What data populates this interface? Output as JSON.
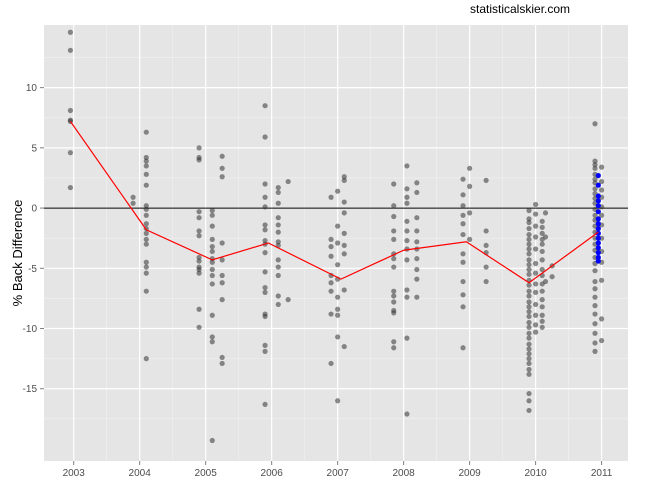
{
  "site_label": "statisticalskier.com",
  "chart_data": {
    "type": "scatter",
    "title": "",
    "xlabel": "",
    "ylabel": "% Back Difference",
    "xlim": [
      2002.55,
      2011.4
    ],
    "ylim": [
      -21,
      15.2
    ],
    "x_ticks": [
      2003,
      2004,
      2005,
      2006,
      2007,
      2008,
      2009,
      2010,
      2011
    ],
    "x_tick_labels": [
      "2003",
      "2004",
      "2005",
      "2006",
      "2007",
      "2008",
      "2009",
      "2010",
      "2011"
    ],
    "y_ticks": [
      -15,
      -10,
      -5,
      0,
      5,
      10
    ],
    "y_tick_labels": [
      "-15",
      "-10",
      "-5",
      "0",
      "5",
      "10"
    ],
    "grid": true,
    "reference_line_y": 0,
    "colors": {
      "panel_bg": "#e5e5e5",
      "grid_major": "#ffffff",
      "points": "#333333",
      "highlight_points": "#0000ff",
      "mean_line": "#ff0000",
      "zero_line": "#000000"
    },
    "series": [
      {
        "type": "points",
        "groups": [
          {
            "x": 2002.95,
            "y": [
              14.6,
              13.1,
              8.1,
              7.3,
              7.2,
              4.6,
              1.7
            ]
          },
          {
            "x": 2003.9,
            "y": [
              0.9,
              0.4
            ]
          },
          {
            "x": 2004.1,
            "y": [
              6.3,
              4.2,
              3.9,
              3.5,
              2.8,
              1.9,
              0.2,
              -0.1,
              -0.6,
              -1.3,
              -1.7,
              -2.1,
              -2.6,
              -3.0,
              -4.5,
              -4.9,
              -5.4,
              -6.9,
              -12.5
            ]
          },
          {
            "x": 2004.9,
            "y": [
              5.0,
              4.2,
              4.0,
              -0.3,
              -0.8,
              -1.9,
              -2.3,
              -4.1,
              -4.4,
              -4.9,
              -5.1,
              -5.4,
              -8.4,
              -9.9
            ]
          },
          {
            "x": 2005.1,
            "y": [
              -0.2,
              -0.6,
              -1.5,
              -2.6,
              -3.2,
              -3.6,
              -4.2,
              -4.5,
              -5.1,
              -5.6,
              -6.3,
              -8.9,
              -10.7,
              -11.1,
              -19.3
            ]
          },
          {
            "x": 2005.25,
            "y": [
              4.3,
              3.3,
              2.6,
              -2.9,
              -4.3,
              -5.6,
              -6.2,
              -7.6,
              -12.4,
              -12.9
            ]
          },
          {
            "x": 2005.9,
            "y": [
              8.5,
              5.9,
              2.0,
              0.9,
              0.1,
              -1.4,
              -1.8,
              -2.7,
              -3.0,
              -3.7,
              -5.3,
              -6.6,
              -7.0,
              -8.8,
              -9.0,
              -11.4,
              -11.9,
              -16.3
            ]
          },
          {
            "x": 2006.1,
            "y": [
              1.7,
              1.3,
              0.4,
              -0.8,
              -1.4,
              -2.0,
              -2.8,
              -3.1,
              -4.3,
              -4.9,
              -5.6,
              -7.3,
              -8.0
            ]
          },
          {
            "x": 2006.25,
            "y": [
              2.2,
              -7.6
            ]
          },
          {
            "x": 2006.9,
            "y": [
              0.9,
              -2.6,
              -3.2,
              -4.0,
              -5.6,
              -6.2,
              -6.9,
              -8.8,
              -12.9
            ]
          },
          {
            "x": 2007.0,
            "y": [
              1.4,
              -1.5,
              -2.9,
              -4.7,
              -5.9,
              -7.4,
              -8.4,
              -8.9,
              -10.7,
              -16.0
            ]
          },
          {
            "x": 2007.1,
            "y": [
              2.6,
              2.3,
              0.5,
              -0.4,
              -2.1,
              -3.1,
              -3.8,
              -6.8,
              -11.5
            ]
          },
          {
            "x": 2007.85,
            "y": [
              2.0,
              0.2,
              -0.7,
              -1.9,
              -2.6,
              -3.8,
              -4.2,
              -4.9,
              -6.9,
              -7.3,
              -7.8,
              -8.5,
              -8.7,
              -11.1,
              -11.6
            ]
          },
          {
            "x": 2008.05,
            "y": [
              3.5,
              1.6,
              0.9,
              0.4,
              -1.1,
              -1.9,
              -2.7,
              -3.4,
              -4.3,
              -6.8,
              -7.4,
              -10.8,
              -17.1
            ]
          },
          {
            "x": 2008.2,
            "y": [
              2.1,
              1.3,
              -0.8,
              -1.9,
              -2.8,
              -3.4,
              -4.2,
              -5.1,
              -5.9,
              -7.4
            ]
          },
          {
            "x": 2008.9,
            "y": [
              2.4,
              1.1,
              0.2,
              -0.6,
              -1.3,
              -2.2,
              -3.8,
              -4.5,
              -6.1,
              -7.2,
              -8.2,
              -11.6
            ]
          },
          {
            "x": 2009.0,
            "y": [
              3.3,
              1.8,
              -0.4,
              -2.6
            ]
          },
          {
            "x": 2009.25,
            "y": [
              2.3,
              -1.9,
              -3.1,
              -3.7,
              -4.9,
              -6.1
            ]
          },
          {
            "x": 2009.9,
            "y": [
              -0.2,
              -0.9,
              -1.2,
              -1.7,
              -2.2,
              -2.6,
              -3.0,
              -3.4,
              -3.8,
              -4.3,
              -4.7,
              -5.1,
              -5.5,
              -6.0,
              -6.4,
              -6.9,
              -7.3,
              -7.8,
              -8.2,
              -8.6,
              -9.0,
              -9.5,
              -9.9,
              -10.4,
              -10.8,
              -11.3,
              -11.7,
              -12.1,
              -12.5,
              -12.9,
              -13.4,
              -13.8,
              -15.4,
              -16.0,
              -16.8
            ]
          },
          {
            "x": 2010.0,
            "y": [
              0.3,
              -0.5,
              -1.5,
              -2.4,
              -3.4,
              -4.6,
              -5.4,
              -6.3,
              -7.0,
              -8.0,
              -8.9,
              -9.7,
              -10.3
            ]
          },
          {
            "x": 2010.1,
            "y": [
              -1.1,
              -1.6,
              -2.1,
              -2.6,
              -3.0,
              -3.6,
              -4.3,
              -5.1,
              -5.6,
              -6.3,
              -6.9,
              -7.6,
              -8.2,
              -8.9,
              -9.4,
              -9.9
            ]
          },
          {
            "x": 2010.15,
            "y": [
              -0.4,
              -2.4,
              -6.1
            ]
          },
          {
            "x": 2010.25,
            "y": [
              -4.8,
              -5.7
            ]
          },
          {
            "x": 2010.9,
            "y": [
              7.0,
              3.9,
              3.6,
              3.3,
              2.8,
              2.4,
              2.1,
              1.6,
              1.2,
              0.8,
              0.4,
              -0.1,
              -0.6,
              -1.0,
              -1.5,
              -2.0,
              -2.5,
              -3.0,
              -3.5,
              -4.1,
              -4.6,
              -5.2,
              -6.1,
              -6.7,
              -7.4,
              -8.1,
              -8.8,
              -9.6,
              -10.4,
              -11.2,
              -11.9
            ]
          },
          {
            "x": 2011.0,
            "y": [
              3.4,
              2.2,
              1.5,
              0.9,
              0.1,
              -0.6,
              -1.4,
              -2.5,
              -3.6,
              -4.5,
              -6.0,
              -9.2,
              -11.0
            ]
          }
        ]
      },
      {
        "type": "points",
        "highlight": true,
        "groups": [
          {
            "x": 2010.95,
            "y": [
              2.7,
              1.9,
              1.0,
              0.6,
              0.2,
              -0.3,
              -0.9,
              -1.3,
              -1.7,
              -2.1,
              -2.5,
              -2.9,
              -3.3,
              -3.7,
              -4.1,
              -4.4
            ]
          }
        ]
      },
      {
        "type": "line",
        "x": [
          2002.95,
          2004.1,
          2005.1,
          2005.95,
          2007.05,
          2008.0,
          2008.95,
          2009.9,
          2010.95
        ],
        "y": [
          7.2,
          -1.8,
          -4.3,
          -2.9,
          -5.9,
          -3.5,
          -2.8,
          -6.2,
          -2.0
        ]
      }
    ]
  }
}
